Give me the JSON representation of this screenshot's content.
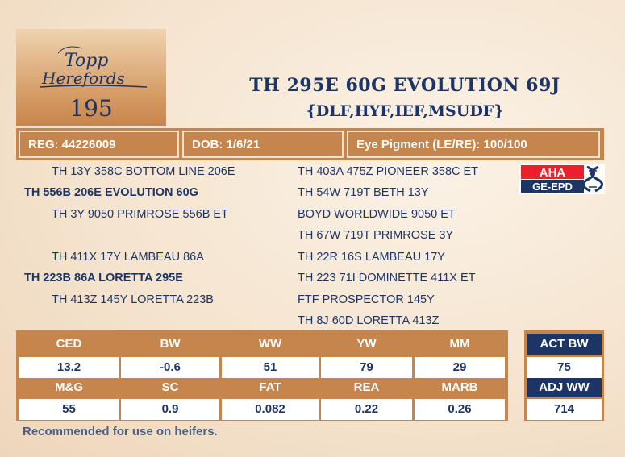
{
  "logo": {
    "line1": "Topp",
    "line2": "Herefords"
  },
  "lot_number": "195",
  "title": "TH 295E 60G EVOLUTION 69J",
  "subtitle": "{DLF,HYF,IEF,MSUDF}",
  "info": {
    "reg": "REG: 44226009",
    "dob": "DOB: 1/6/21",
    "eye": "Eye Pigment (LE/RE): 100/100"
  },
  "pedigree": {
    "sire_sire": "TH 13Y 358C BOTTOM LINE 206E",
    "sire": "TH 556B 206E EVOLUTION 60G",
    "sire_dam": "TH 3Y 9050 PRIMROSE 556B ET",
    "dam_sire": "TH 411X 17Y LAMBEAU 86A",
    "dam": "TH 223B 86A LORETTA 295E",
    "dam_dam": "TH 413Z 145Y LORETTA 223B",
    "right": [
      "TH 403A 475Z PIONEER 358C ET",
      "TH 54W 719T BETH 13Y",
      "BOYD WORLDWIDE 9050 ET",
      "TH 67W 719T PRIMROSE 3Y",
      "TH 22R 16S LAMBEAU 17Y",
      "TH 223 71I DOMINETTE 411X ET",
      "FTF PROSPECTOR 145Y",
      "TH 8J 60D LORETTA 413Z"
    ]
  },
  "aha_badge": {
    "top": "AHA",
    "bottom": "GE-EPD"
  },
  "epd": {
    "row1_headers": [
      "CED",
      "BW",
      "WW",
      "YW",
      "MM"
    ],
    "row1_values": [
      "13.2",
      "-0.6",
      "51",
      "79",
      "29"
    ],
    "row2_headers": [
      "M&G",
      "SC",
      "FAT",
      "REA",
      "MARB"
    ],
    "row2_values": [
      "55",
      "0.9",
      "0.082",
      "0.22",
      "0.26"
    ]
  },
  "actual": {
    "act_bw_label": "ACT BW",
    "act_bw_value": "75",
    "adj_ww_label": "ADJ WW",
    "adj_ww_value": "714"
  },
  "note": "Recommended for use on heifers.",
  "colors": {
    "navy": "#1d3566",
    "copper": "#c5854c",
    "cream": "#f5e4cf"
  }
}
